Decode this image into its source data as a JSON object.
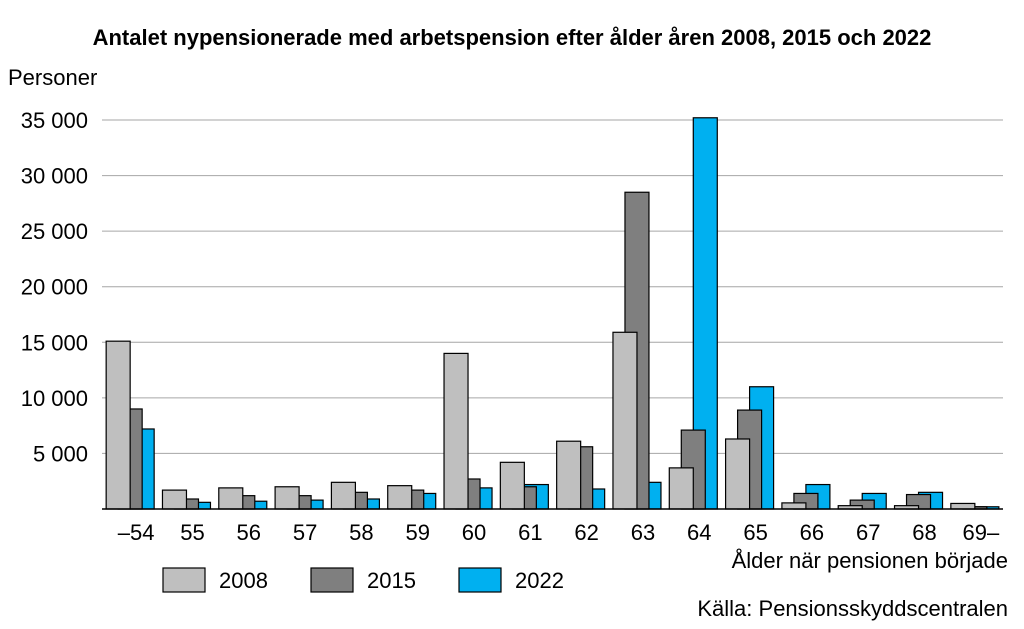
{
  "chart_data": {
    "type": "bar",
    "title": "Antalet nypensionerade med arbetspension efter ålder åren 2008, 2015 och 2022",
    "ylabel": "Personer",
    "xlabel": "Ålder när pensionen började",
    "source": "Källa: Pensionsskyddscentralen",
    "ylim": [
      0,
      35000
    ],
    "yticks": [
      0,
      5000,
      10000,
      15000,
      20000,
      25000,
      30000,
      35000
    ],
    "ytick_labels": [
      "",
      "5 000",
      "10 000",
      "15 000",
      "20 000",
      "25 000",
      "30 000",
      "35 000"
    ],
    "grid": true,
    "legend_position": "bottom-left",
    "categories": [
      "–54",
      "55",
      "56",
      "57",
      "58",
      "59",
      "60",
      "61",
      "62",
      "63",
      "64",
      "65",
      "66",
      "67",
      "68",
      "69–"
    ],
    "series": [
      {
        "name": "2008",
        "color": "#bfbfbf",
        "values": [
          15100,
          1700,
          1900,
          2000,
          2400,
          2100,
          14000,
          4200,
          6100,
          15900,
          3700,
          6300,
          550,
          300,
          300,
          500
        ]
      },
      {
        "name": "2015",
        "color": "#7f7f7f",
        "values": [
          9000,
          900,
          1200,
          1200,
          1500,
          1700,
          2700,
          2000,
          5600,
          28500,
          7100,
          8900,
          1400,
          800,
          1300,
          200
        ]
      },
      {
        "name": "2022",
        "color": "#00b0f0",
        "values": [
          7200,
          600,
          700,
          800,
          900,
          1400,
          1900,
          2200,
          1800,
          2400,
          35200,
          11000,
          2200,
          1400,
          1500,
          200
        ]
      }
    ]
  }
}
